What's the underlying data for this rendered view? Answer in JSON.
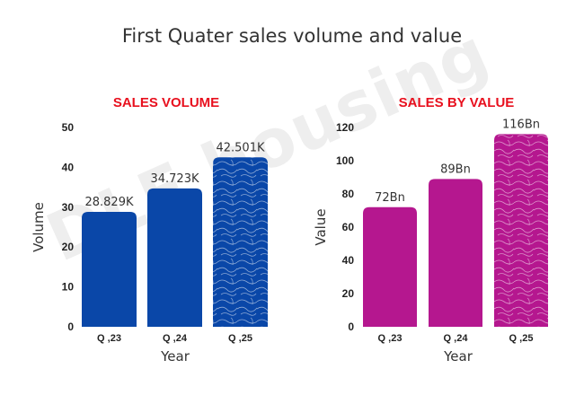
{
  "title": "First Quater sales volume and value",
  "watermark": "DLF housing",
  "chart_data": [
    {
      "type": "bar",
      "title": "SALES VOLUME",
      "categories": [
        "Q ,23",
        "Q ,24",
        "Q ,25"
      ],
      "values": [
        28.829,
        34.723,
        42.501
      ],
      "data_labels": [
        "28.829K",
        "34.723K",
        "42.501K"
      ],
      "xlabel": "Year",
      "ylabel": "Volume",
      "ylim": [
        0,
        50
      ],
      "yticks": [
        "0",
        "10",
        "20",
        "30",
        "40",
        "50"
      ],
      "grid": false,
      "color": "#0a47a8",
      "patterned_last_bar": true
    },
    {
      "type": "bar",
      "title": "SALES BY VALUE",
      "categories": [
        "Q ,23",
        "Q ,24",
        "Q ,25"
      ],
      "values": [
        72,
        89,
        116
      ],
      "data_labels": [
        "72Bn",
        "89Bn",
        "116Bn"
      ],
      "xlabel": "Year",
      "ylabel": "Value",
      "ylim": [
        0,
        120
      ],
      "yticks": [
        "0",
        "20",
        "40",
        "60",
        "80",
        "100",
        "120"
      ],
      "grid": false,
      "color": "#b5178f",
      "patterned_last_bar": true
    }
  ]
}
